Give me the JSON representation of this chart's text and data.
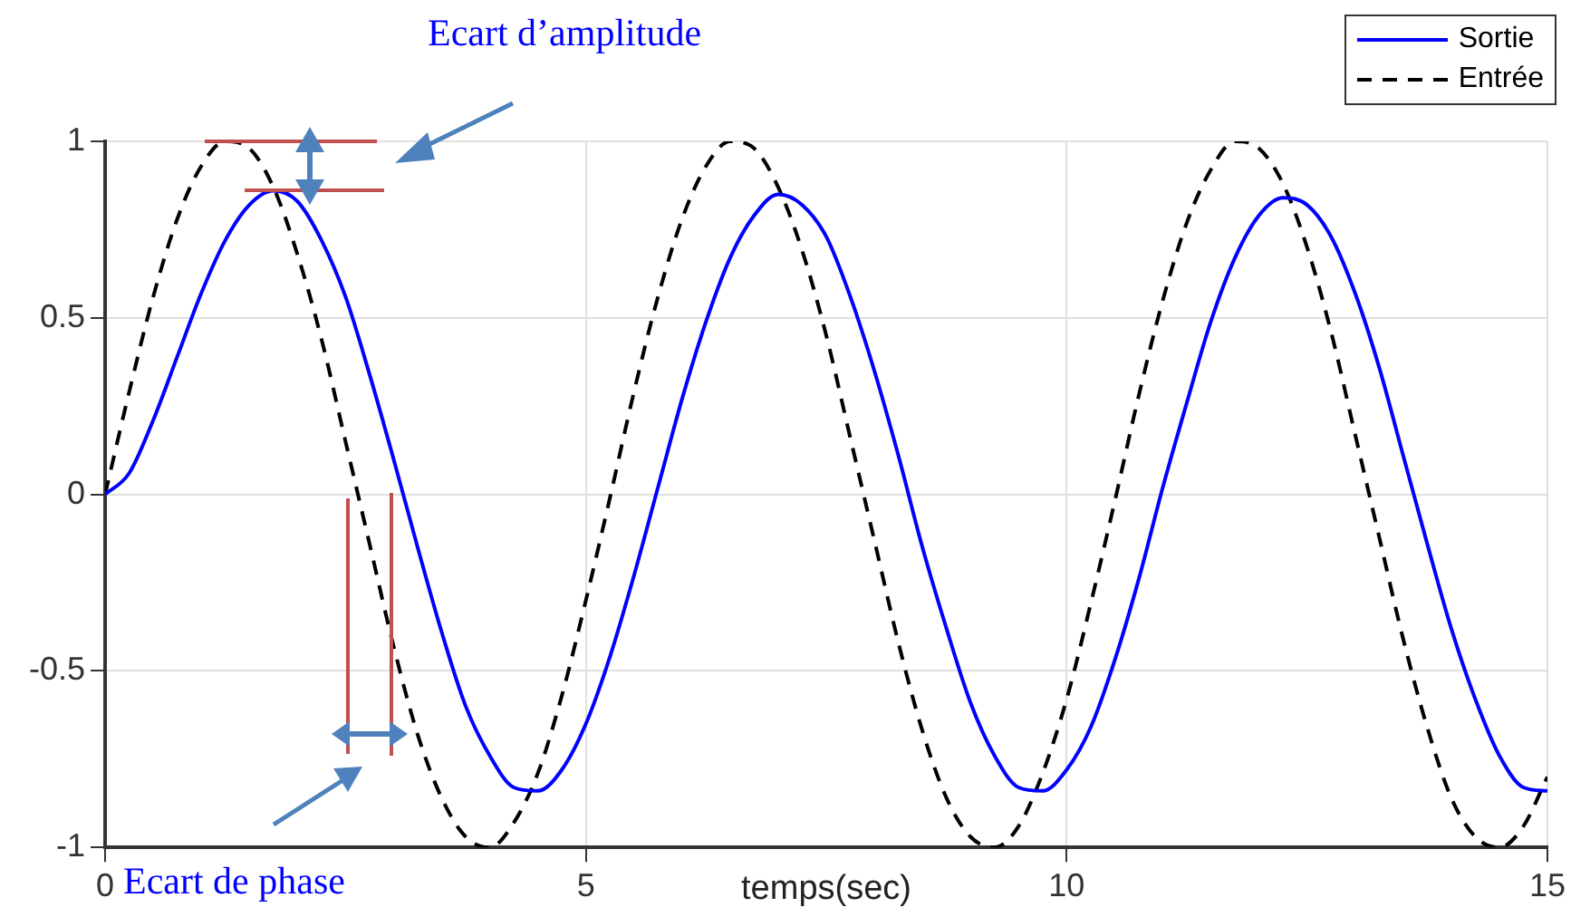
{
  "chart_data": {
    "type": "line",
    "xlabel": "temps(sec)",
    "x": [
      0,
      0.25,
      0.5,
      0.75,
      1,
      1.25,
      1.5,
      1.75,
      2,
      2.25,
      2.5,
      2.75,
      3,
      3.25,
      3.5,
      3.75,
      4,
      4.25,
      4.5,
      4.75,
      5,
      5.25,
      5.5,
      5.75,
      6,
      6.25,
      6.5,
      6.75,
      7,
      7.25,
      7.5,
      7.75,
      8,
      8.25,
      8.5,
      8.75,
      9,
      9.25,
      9.5,
      9.75,
      10,
      10.25,
      10.5,
      10.75,
      11,
      11.25,
      11.5,
      11.75,
      12,
      12.25,
      12.5,
      12.75,
      13,
      13.25,
      13.5,
      13.75,
      14,
      14.25,
      14.5,
      14.75,
      15
    ],
    "series": [
      {
        "name": "Sortie",
        "color": "#0000ff",
        "line_style": "solid",
        "values": [
          0,
          0.06,
          0.21,
          0.39,
          0.57,
          0.72,
          0.82,
          0.86,
          0.83,
          0.72,
          0.56,
          0.34,
          0.1,
          -0.15,
          -0.39,
          -0.6,
          -0.74,
          -0.83,
          -0.84,
          -0.78,
          -0.65,
          -0.46,
          -0.23,
          0.02,
          0.27,
          0.49,
          0.67,
          0.79,
          0.85,
          0.82,
          0.73,
          0.56,
          0.35,
          0.11,
          -0.15,
          -0.38,
          -0.59,
          -0.74,
          -0.83,
          -0.84,
          -0.78,
          -0.66,
          -0.47,
          -0.24,
          0.02,
          0.26,
          0.49,
          0.67,
          0.79,
          0.84,
          0.82,
          0.73,
          0.57,
          0.36,
          0.11,
          -0.14,
          -0.38,
          -0.58,
          -0.74,
          -0.83,
          -0.84
        ]
      },
      {
        "name": "Entrée",
        "color": "#000000",
        "line_style": "dashed",
        "values": [
          0,
          0.29,
          0.56,
          0.78,
          0.93,
          1,
          0.98,
          0.87,
          0.68,
          0.44,
          0.15,
          -0.14,
          -0.43,
          -0.68,
          -0.86,
          -0.97,
          -1,
          -0.93,
          -0.79,
          -0.57,
          -0.3,
          -0.01,
          0.29,
          0.56,
          0.78,
          0.93,
          1,
          0.98,
          0.87,
          0.69,
          0.45,
          0.16,
          -0.13,
          -0.42,
          -0.67,
          -0.86,
          -0.97,
          -1,
          -0.94,
          -0.79,
          -0.58,
          -0.31,
          -0.02,
          0.28,
          0.55,
          0.77,
          0.92,
          1,
          0.98,
          0.88,
          0.7,
          0.46,
          0.17,
          -0.12,
          -0.41,
          -0.66,
          -0.86,
          -0.97,
          -1,
          -0.94,
          -0.8
        ]
      }
    ],
    "xlim": [
      0,
      15
    ],
    "xticks": [
      0,
      5,
      10,
      15
    ],
    "ylim": [
      -1,
      1
    ],
    "yticks": [
      -1,
      -0.5,
      0,
      0.5,
      1
    ],
    "grid": true,
    "legend": "top right",
    "marker": "none",
    "annotations": [
      "Ecart d’amplitude",
      "Ecart de phase"
    ]
  }
}
